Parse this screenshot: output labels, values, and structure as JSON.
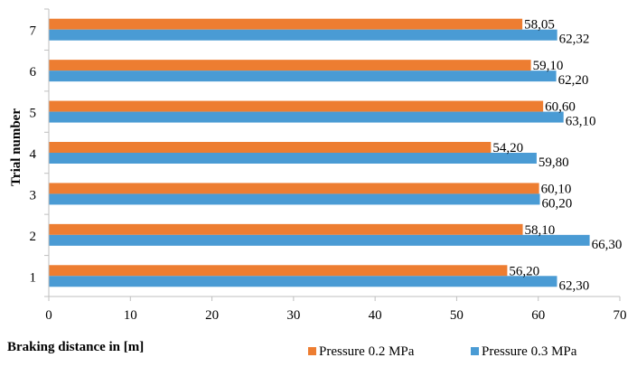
{
  "chart_data": {
    "type": "bar",
    "orientation": "horizontal",
    "categories": [
      "1",
      "2",
      "3",
      "4",
      "5",
      "6",
      "7"
    ],
    "series": [
      {
        "name": "Pressure 0.2 MPa",
        "color": "#ED7D31",
        "values": [
          56.2,
          58.1,
          60.1,
          54.2,
          60.6,
          59.1,
          58.05
        ],
        "labels": [
          "56,20",
          "58,10",
          "60,10",
          "54,20",
          "60,60",
          "59,10",
          "58,05"
        ]
      },
      {
        "name": "Pressure 0.3 MPa",
        "color": "#4A9BD4",
        "values": [
          62.3,
          66.3,
          60.2,
          59.8,
          63.1,
          62.2,
          62.32
        ],
        "labels": [
          "62,30",
          "66,30",
          "60,20",
          "59,80",
          "63,10",
          "62,20",
          "62,32"
        ]
      }
    ],
    "xlabel": "Braking distance in [m]",
    "ylabel": "Trial number",
    "xlim": [
      0,
      70
    ],
    "xticks": [
      "0",
      "10",
      "20",
      "30",
      "40",
      "50",
      "60",
      "70"
    ],
    "grid": false,
    "legend_position": "bottom-right"
  }
}
